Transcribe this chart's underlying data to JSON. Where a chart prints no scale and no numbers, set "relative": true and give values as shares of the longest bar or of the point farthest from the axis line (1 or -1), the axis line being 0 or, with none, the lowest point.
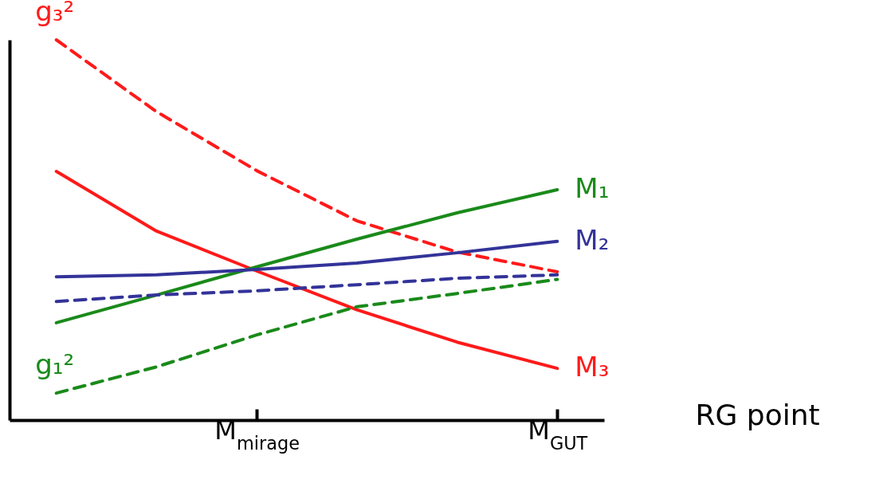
{
  "chart_data": {
    "type": "line",
    "relative": true,
    "xlabel": "RG point",
    "categories": [
      null,
      null,
      "M$_{mirage}$",
      null,
      null,
      "M$_{GUT}$"
    ],
    "series": [
      {
        "name": "g₃²",
        "color": "#ff1a1a",
        "line_style": "dashed",
        "values": [
          1,
          0.811,
          0.656,
          0.524,
          0.442,
          0.39
        ]
      },
      {
        "name": "M₃",
        "color": "#ff1a1a",
        "line_style": "solid",
        "values": [
          0.654,
          0.497,
          0.392,
          0.29,
          0.205,
          0.136
        ]
      },
      {
        "name": "M₁",
        "color": "#1a8a1a",
        "line_style": "solid",
        "values": [
          0.256,
          0.329,
          0.403,
          0.476,
          0.545,
          0.606
        ]
      },
      {
        "name": "M₂",
        "color": "#333399",
        "line_style": "solid",
        "values": [
          0.377,
          0.382,
          0.396,
          0.413,
          0.44,
          0.47
        ]
      },
      {
        "color": "#333399",
        "line_style": "dashed",
        "values": [
          0.312,
          0.329,
          0.34,
          0.356,
          0.373,
          0.382
        ]
      },
      {
        "name": "g₁²",
        "color": "#1a8a1a",
        "line_style": "dashed",
        "values": [
          0.071,
          0.14,
          0.224,
          0.298,
          0.333,
          0.37
        ]
      }
    ]
  }
}
